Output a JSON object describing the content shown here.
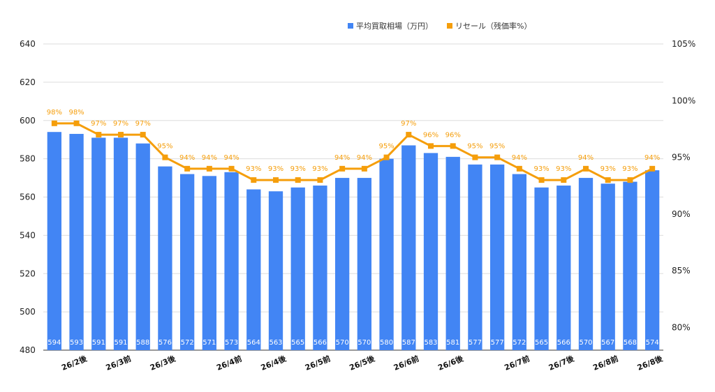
{
  "chart_data": {
    "type": "bar",
    "legend": {
      "placement": "top-right",
      "items": [
        {
          "label": "平均買取相場（万円）",
          "color": "#4285f4",
          "marker": "square"
        },
        {
          "label": "リセール（残価率%）",
          "color": "#f59e0b",
          "marker": "square"
        }
      ]
    },
    "grid": true,
    "y_left": {
      "min": 480,
      "max": 640,
      "ticks": [
        "480",
        "500",
        "520",
        "540",
        "560",
        "580",
        "600",
        "620",
        "640"
      ]
    },
    "y_right": {
      "min": 78,
      "max": 105,
      "ticks": [
        {
          "value": 80,
          "label": "80%"
        },
        {
          "value": 85,
          "label": "85%"
        },
        {
          "value": 90,
          "label": "90%"
        },
        {
          "value": 95,
          "label": "95%"
        },
        {
          "value": 100,
          "label": "100%"
        },
        {
          "value": 105,
          "label": "105%"
        }
      ]
    },
    "x_tick_labels": [
      {
        "index": 1,
        "label": "26/2後"
      },
      {
        "index": 3,
        "label": "26/3前"
      },
      {
        "index": 5,
        "label": "26/3後"
      },
      {
        "index": 8,
        "label": "26/4前"
      },
      {
        "index": 10,
        "label": "26/4後"
      },
      {
        "index": 12,
        "label": "26/5前"
      },
      {
        "index": 14,
        "label": "26/5後"
      },
      {
        "index": 16,
        "label": "26/6前"
      },
      {
        "index": 18,
        "label": "26/6後"
      },
      {
        "index": 21,
        "label": "26/7前"
      },
      {
        "index": 23,
        "label": "26/7後"
      },
      {
        "index": 25,
        "label": "26/8前"
      },
      {
        "index": 27,
        "label": "26/8後"
      }
    ],
    "series": [
      {
        "name": "平均買取相場（万円）",
        "type": "bar",
        "axis": "left",
        "color": "#4285f4",
        "values": [
          594,
          593,
          591,
          591,
          588,
          576,
          572,
          571,
          573,
          564,
          563,
          565,
          566,
          570,
          570,
          580,
          587,
          583,
          581,
          577,
          577,
          572,
          565,
          566,
          570,
          567,
          568,
          574
        ],
        "labels": [
          "594",
          "593",
          "591",
          "591",
          "588",
          "576",
          "572",
          "571",
          "573",
          "564",
          "563",
          "565",
          "566",
          "570",
          "570",
          "580",
          "587",
          "583",
          "581",
          "577",
          "577",
          "572",
          "565",
          "566",
          "570",
          "567",
          "568",
          "574"
        ]
      },
      {
        "name": "リセール（残価率%）",
        "type": "line",
        "axis": "right",
        "color": "#f59e0b",
        "values": [
          98,
          98,
          97,
          97,
          97,
          95,
          94,
          94,
          94,
          93,
          93,
          93,
          93,
          94,
          94,
          95,
          97,
          96,
          96,
          95,
          95,
          94,
          93,
          93,
          94,
          93,
          93,
          94
        ],
        "labels": [
          "98%",
          "98%",
          "97%",
          "97%",
          "97%",
          "95%",
          "94%",
          "94%",
          "94%",
          "93%",
          "93%",
          "93%",
          "93%",
          "94%",
          "94%",
          "95%",
          "97%",
          "96%",
          "96%",
          "95%",
          "95%",
          "94%",
          "93%",
          "93%",
          "94%",
          "93%",
          "93%",
          "94%"
        ]
      }
    ]
  }
}
